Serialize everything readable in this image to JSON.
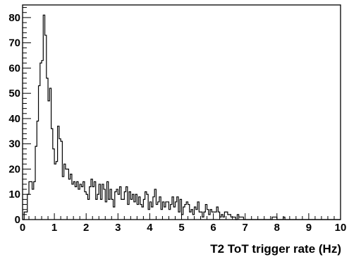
{
  "chart_data": {
    "type": "histogram",
    "xlabel": "T2 ToT trigger rate (Hz)",
    "ylabel": "",
    "title": "",
    "xlim": [
      0,
      10
    ],
    "ylim": [
      0,
      85
    ],
    "grid": false,
    "legend": "none",
    "line_color": "#000000",
    "x_ticks": [
      "0",
      "1",
      "2",
      "3",
      "4",
      "5",
      "6",
      "7",
      "8",
      "9",
      "10"
    ],
    "y_ticks": [
      "0",
      "10",
      "20",
      "30",
      "40",
      "50",
      "60",
      "70",
      "80"
    ],
    "bin_width": 0.05,
    "counts": [
      0,
      3,
      3,
      10,
      15,
      15,
      12,
      15,
      29,
      39,
      53,
      62,
      63,
      81,
      73,
      56,
      47,
      52,
      36,
      28,
      22,
      23,
      37,
      32,
      31,
      17,
      22,
      20,
      20,
      16,
      18,
      14,
      15,
      13,
      15,
      12,
      14,
      13,
      15,
      11,
      10,
      8,
      13,
      16,
      13,
      15,
      8,
      10,
      14,
      8,
      14,
      12,
      7,
      15,
      8,
      12,
      8,
      5,
      11,
      12,
      10,
      13,
      8,
      8,
      11,
      13,
      6,
      11,
      8,
      10,
      7,
      10,
      6,
      9,
      6,
      5,
      8,
      11,
      10,
      4,
      7,
      5,
      9,
      12,
      6,
      7,
      9,
      4,
      7,
      5,
      7,
      7,
      4,
      6,
      9,
      5,
      7,
      9,
      3,
      8,
      2,
      5,
      6,
      7,
      6,
      3,
      4,
      2,
      5,
      4,
      7,
      3,
      3,
      1,
      3,
      6,
      4,
      2,
      4,
      3,
      3,
      3,
      5,
      3,
      1,
      2,
      1,
      3,
      3,
      2,
      2,
      1,
      1,
      1,
      0,
      2,
      1,
      1,
      1,
      0,
      0,
      0,
      0,
      0,
      0,
      0,
      0,
      0,
      0,
      0,
      0,
      0,
      0,
      0,
      0,
      0,
      0,
      1,
      1,
      1,
      0,
      0,
      0,
      0,
      1,
      0,
      0,
      0,
      0,
      0,
      0,
      0,
      0,
      0,
      0,
      0,
      0,
      0,
      0,
      0,
      0,
      0,
      0,
      0,
      0,
      0,
      0,
      0,
      0,
      0,
      0,
      0,
      0,
      0,
      0,
      0,
      0,
      0,
      0,
      0
    ]
  }
}
